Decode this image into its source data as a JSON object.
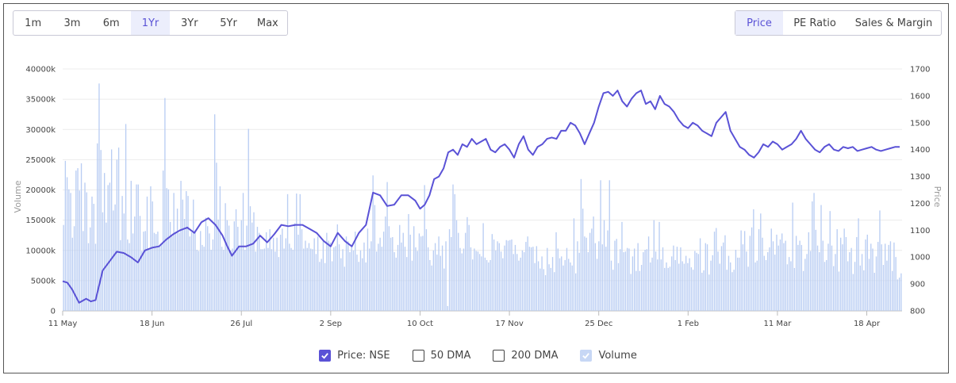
{
  "range_buttons": [
    "1m",
    "3m",
    "6m",
    "1Yr",
    "3Yr",
    "5Yr",
    "Max"
  ],
  "active_range": "1Yr",
  "view_buttons": [
    "Price",
    "PE Ratio",
    "Sales & Margin"
  ],
  "active_view": "Price",
  "legend": {
    "price": "Price: NSE",
    "dma50": "50 DMA",
    "dma200": "200 DMA",
    "volume": "Volume"
  },
  "colors": {
    "price_line": "#5a52d6",
    "volume_bar": "#b9cdf3",
    "accent": "#5a52d6"
  },
  "chart_data": {
    "type": "line+bar",
    "y_left_label": "Volume",
    "y_right_label": "Price",
    "y_left_ticks": [
      "0",
      "5000k",
      "10000k",
      "15000k",
      "20000k",
      "25000k",
      "30000k",
      "35000k",
      "40000k"
    ],
    "y_left_range": [
      0,
      40000
    ],
    "y_right_ticks": [
      "800",
      "900",
      "1000",
      "1100",
      "1200",
      "1300",
      "1400",
      "1500",
      "1600",
      "1700"
    ],
    "y_right_range": [
      800,
      1700
    ],
    "x_tick_labels": [
      "11 May",
      "18 Jun",
      "26 Jul",
      "2 Sep",
      "10 Oct",
      "17 Nov",
      "25 Dec",
      "1 Feb",
      "11 Mar",
      "18 Apr"
    ],
    "x_tick_day_index": [
      0,
      38,
      76,
      114,
      152,
      190,
      228,
      266,
      304,
      342
    ],
    "x_domain_days": [
      0,
      357
    ],
    "grid": true,
    "legend_position": "bottom-center",
    "price_series": {
      "name": "Price: NSE",
      "day": [
        0,
        2,
        4,
        7,
        10,
        12,
        14,
        17,
        20,
        23,
        26,
        29,
        32,
        35,
        38,
        41,
        44,
        47,
        50,
        53,
        56,
        59,
        62,
        65,
        68,
        70,
        72,
        75,
        78,
        81,
        84,
        87,
        90,
        93,
        96,
        99,
        102,
        105,
        108,
        111,
        114,
        117,
        120,
        123,
        126,
        129,
        132,
        135,
        138,
        141,
        144,
        147,
        150,
        152,
        154,
        156,
        158,
        160,
        162,
        164,
        166,
        168,
        170,
        172,
        174,
        176,
        178,
        180,
        182,
        184,
        186,
        188,
        190,
        192,
        194,
        196,
        198,
        200,
        202,
        204,
        206,
        208,
        210,
        212,
        214,
        216,
        218,
        220,
        222,
        224,
        226,
        228,
        230,
        232,
        234,
        236,
        238,
        240,
        242,
        244,
        246,
        248,
        250,
        252,
        254,
        256,
        258,
        260,
        262,
        264,
        266,
        268,
        270,
        272,
        274,
        276,
        278,
        280,
        282,
        284,
        286,
        288,
        290,
        292,
        294,
        296,
        298,
        300,
        302,
        304,
        306,
        308,
        310,
        312,
        314,
        316,
        318,
        320,
        322,
        324,
        326,
        328,
        330,
        332,
        334,
        336,
        338,
        340,
        342,
        344,
        346,
        348,
        350,
        352,
        354,
        356
      ],
      "values": [
        910,
        905,
        880,
        830,
        845,
        835,
        840,
        950,
        985,
        1020,
        1015,
        1000,
        980,
        1025,
        1035,
        1040,
        1065,
        1085,
        1100,
        1110,
        1090,
        1130,
        1145,
        1120,
        1080,
        1040,
        1005,
        1040,
        1040,
        1050,
        1080,
        1055,
        1085,
        1120,
        1115,
        1120,
        1120,
        1105,
        1090,
        1060,
        1040,
        1090,
        1060,
        1040,
        1090,
        1120,
        1240,
        1230,
        1190,
        1195,
        1230,
        1230,
        1210,
        1180,
        1195,
        1230,
        1290,
        1300,
        1330,
        1390,
        1400,
        1380,
        1420,
        1410,
        1440,
        1420,
        1430,
        1440,
        1400,
        1390,
        1410,
        1420,
        1400,
        1370,
        1420,
        1450,
        1400,
        1380,
        1410,
        1420,
        1440,
        1445,
        1440,
        1470,
        1470,
        1500,
        1490,
        1460,
        1420,
        1460,
        1500,
        1560,
        1610,
        1615,
        1600,
        1620,
        1580,
        1560,
        1590,
        1610,
        1620,
        1570,
        1580,
        1550,
        1600,
        1570,
        1560,
        1540,
        1510,
        1490,
        1480,
        1500,
        1490,
        1470,
        1460,
        1450,
        1500,
        1520,
        1540,
        1470,
        1440,
        1410,
        1400,
        1380,
        1370,
        1390,
        1420,
        1410,
        1430,
        1420,
        1400,
        1410,
        1420,
        1440,
        1470,
        1440,
        1420,
        1400,
        1390,
        1410,
        1420,
        1400,
        1395,
        1410,
        1405,
        1410,
        1395,
        1400,
        1405,
        1410,
        1400,
        1395,
        1400,
        1405,
        1410,
        1410
      ],
      "color": "#5a52d6"
    },
    "volume_series": {
      "name": "Volume",
      "values": [
        14200,
        24800,
        22100,
        20100,
        19500,
        12100,
        14000,
        23200,
        23600,
        19900,
        24400,
        13200,
        21200,
        19600,
        11200,
        13800,
        18900,
        17700,
        11100,
        27700,
        37600,
        26600,
        16300,
        22800,
        14600,
        20800,
        21200,
        26700,
        16600,
        17600,
        25000,
        27000,
        11700,
        19000,
        16100,
        30900,
        11800,
        11200,
        21500,
        12800,
        15600,
        20900,
        20900,
        15700,
        9900,
        13100,
        13200,
        18900,
        10100,
        20600,
        18100,
        12900,
        12700,
        13100,
        10600,
        11100,
        23200,
        35200,
        20300,
        20100,
        14700,
        12300,
        19500,
        13100,
        16900,
        12900,
        21500,
        18400,
        15200,
        19800,
        19000,
        12300,
        13000,
        18400,
        13300,
        10100,
        9900,
        13200,
        10900,
        10600,
        15400,
        14000,
        12800,
        10100,
        11800,
        32500,
        24500,
        15100,
        20600,
        10600,
        10100,
        17800,
        15000,
        14100,
        10000,
        10300,
        14800,
        16800,
        13900,
        10500,
        15000,
        19500,
        10100,
        14100,
        30100,
        17300,
        14600,
        16300,
        9800,
        13900,
        12900,
        10200,
        10200,
        10300,
        13000,
        10400,
        13500,
        10200,
        12100,
        9800,
        12100,
        8900,
        12600,
        13600,
        10300,
        12000,
        19300,
        11100,
        10400,
        10100,
        14500,
        19400,
        12600,
        19300,
        13500,
        10300,
        11600,
        10400,
        11200,
        10300,
        10200,
        12000,
        9400,
        12300,
        8100,
        8600,
        11600,
        7900,
        12900,
        11600,
        11300,
        8200,
        10500,
        10700,
        14300,
        11000,
        8700,
        10200,
        7300,
        12300,
        11500,
        9700,
        10800,
        10000,
        13100,
        9300,
        8100,
        10000,
        8700,
        11300,
        8000,
        13600,
        10300,
        11500,
        22400,
        17500,
        9800,
        11100,
        12100,
        10600,
        13100,
        15600,
        21300,
        14000,
        12100,
        12200,
        9700,
        8800,
        10900,
        14200,
        11300,
        12900,
        10600,
        8900,
        16000,
        12600,
        8300,
        14000,
        10500,
        9900,
        12800,
        12300,
        12400,
        20800,
        13500,
        10500,
        8400,
        7500,
        10000,
        11200,
        9300,
        12300,
        9100,
        10800,
        7000,
        11500,
        800,
        13500,
        12200,
        20900,
        19300,
        15000,
        12900,
        10400,
        9500,
        10300,
        12900,
        15500,
        14200,
        10500,
        8500,
        10300,
        9900,
        9800,
        9400,
        9000,
        14500,
        8800,
        8400,
        8000,
        8400,
        12700,
        11800,
        10000,
        11500,
        11200,
        9800,
        8700,
        10800,
        11700,
        11600,
        11700,
        11800,
        9400,
        10900,
        9400,
        8300,
        8800,
        10000,
        9700,
        11400,
        12300,
        10600,
        10500,
        10600,
        7900,
        10700,
        8200,
        7000,
        9000,
        6900,
        5900,
        10400,
        7700,
        7100,
        8900,
        6400,
        13000,
        10300,
        8700,
        9000,
        7500,
        8400,
        10400,
        8600,
        8000,
        7500,
        15300,
        6200,
        11500,
        9600,
        21800,
        16900,
        12300,
        12100,
        9700,
        12900,
        13600,
        15600,
        11200,
        8600,
        11500,
        21600,
        11000,
        15000,
        10600,
        13300,
        21600,
        8300,
        6800,
        11600,
        11900,
        7900,
        10200,
        14700,
        9700,
        9800,
        10400,
        10300,
        6100,
        9000,
        10300,
        6600,
        11200,
        6600,
        7600,
        9700,
        10100,
        10200,
        12300,
        8000,
        8800,
        15000,
        9800,
        8500,
        14700,
        8500,
        10500,
        7100,
        8000,
        7100,
        7300,
        9000,
        10800,
        8400,
        10600,
        7800,
        10500,
        8200,
        7800,
        9100,
        7900,
        8700,
        7200,
        6800,
        9900,
        9600,
        9400,
        12000,
        6300,
        6700,
        11200,
        11000,
        6000,
        8300,
        9200,
        13100,
        13700,
        9800,
        7800,
        10700,
        11300,
        12500,
        6800,
        9100,
        8000,
        6400,
        6800,
        10100,
        8800,
        8800,
        13300,
        11000,
        13200,
        9800,
        7300,
        12400,
        13800,
        16800,
        8000,
        8300,
        13500,
        16100,
        12100,
        9100,
        8400,
        9700,
        10500,
        13600,
        11500,
        9300,
        12600,
        10800,
        11800,
        12800,
        11200,
        11600,
        7700,
        8900,
        8200,
        17900,
        7100,
        12400,
        10900,
        11600,
        10900,
        6600,
        8600,
        9400,
        13000,
        9900,
        18100,
        19500,
        13400,
        10800,
        9700,
        17500,
        11600,
        8100,
        8400,
        11100,
        16500,
        10800,
        7400,
        9400,
        13500,
        6500,
        12100,
        11000,
        13600,
        12200,
        8200,
        9700,
        10400,
        6100,
        8100,
        12200,
        15300,
        7500,
        9400,
        6700,
        11800,
        12600,
        8600,
        11100,
        10300,
        6300,
        9000,
        11400,
        16600,
        11000,
        7600,
        11100,
        8300,
        10900,
        11500,
        6600,
        11300,
        8900,
        5200,
        5500,
        6200
      ],
      "color": "#b9cdf3"
    }
  }
}
